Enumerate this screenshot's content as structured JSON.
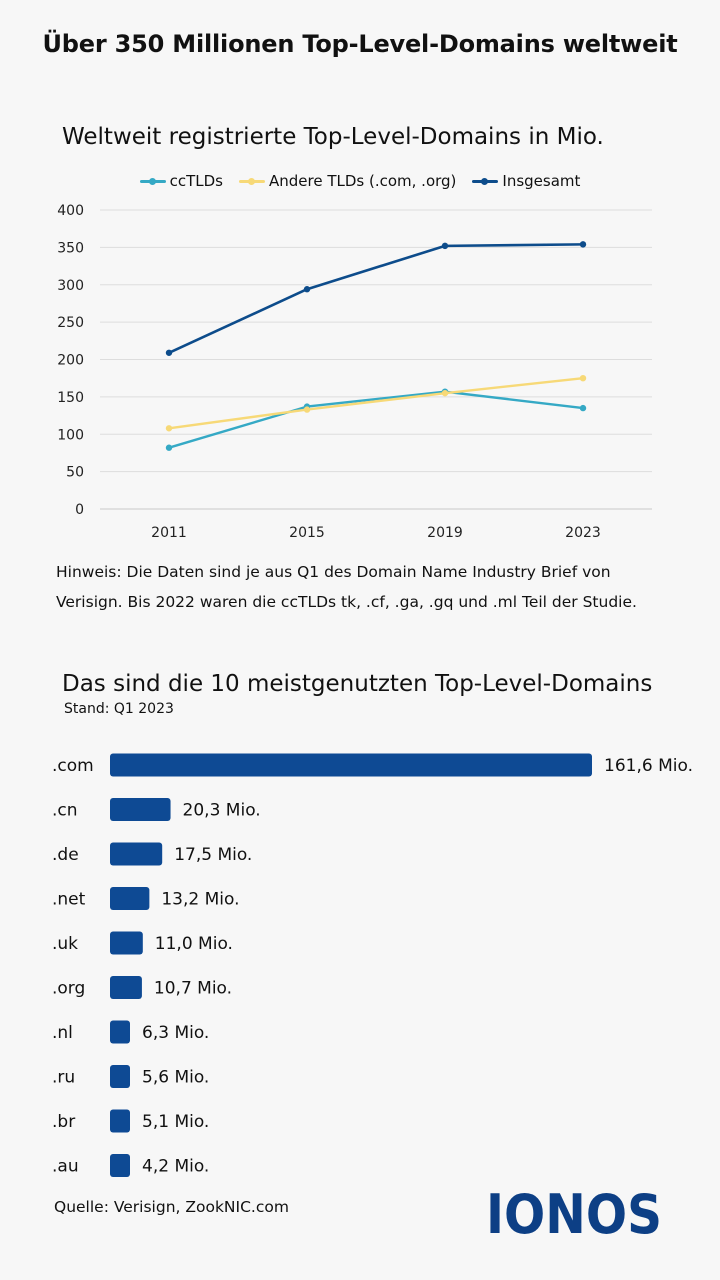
{
  "page": {
    "main_title": "Über 350 Millionen Top-Level-Domains weltweit",
    "note": "Hinweis: Die Daten sind je aus Q1 des Domain Name Industry Brief von Verisign. Bis 2022 waren die ccTLDs tk, .cf, .ga, .gq und .ml Teil der Studie.",
    "source": "Quelle: Verisign, ZookNIC.com",
    "logo_text": "IONOS",
    "colors": {
      "cctld": "#35a9c5",
      "other": "#f7d977",
      "total": "#0d4c8b",
      "bar": "#0e4a94",
      "grid": "#dddddd"
    }
  },
  "chart_data": [
    {
      "type": "line",
      "title": "Weltweit registrierte Top-Level-Domains in Mio.",
      "categories": [
        "2011",
        "2015",
        "2019",
        "2023"
      ],
      "series": [
        {
          "name": "ccTLDs",
          "values": [
            82,
            137,
            157,
            135
          ]
        },
        {
          "name": "Andere TLDs (.com, .org)",
          "values": [
            108,
            133,
            155,
            175
          ]
        },
        {
          "name": "Insgesamt",
          "values": [
            209,
            294,
            352,
            354
          ]
        }
      ],
      "yticks": [
        "0",
        "50",
        "100",
        "150",
        "200",
        "250",
        "300",
        "350",
        "400"
      ],
      "ylim": [
        0,
        400
      ],
      "grid": true,
      "legend": "top-center"
    },
    {
      "type": "bar",
      "title": "Das sind die 10 meistgenutzten Top-Level-Domains",
      "subtitle": "Stand: Q1 2023",
      "categories": [
        ".com",
        ".cn",
        ".de",
        ".net",
        ".uk",
        ".org",
        ".nl",
        ".ru",
        ".br",
        ".au"
      ],
      "values": [
        161.6,
        20.3,
        17.5,
        13.2,
        11.0,
        10.7,
        6.3,
        5.6,
        5.1,
        4.2
      ],
      "labels": [
        "161,6 Mio.",
        "20,3 Mio.",
        "17,5 Mio.",
        "13,2 Mio.",
        "11,0 Mio.",
        "10,7 Mio.",
        "6,3 Mio.",
        "5,6 Mio.",
        "5,1 Mio.",
        "4,2 Mio."
      ]
    }
  ]
}
